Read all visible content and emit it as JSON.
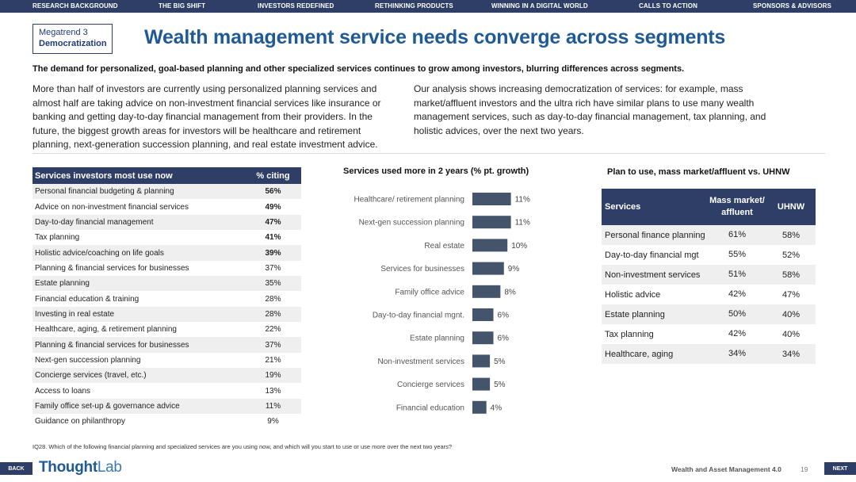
{
  "nav": [
    "RESEARCH BACKGROUND",
    "THE BIG SHIFT",
    "INVESTORS REDEFINED",
    "RETHINKING PRODUCTS",
    "WINNING IN A DIGITAL WORLD",
    "CALLS TO ACTION",
    "SPONSORS & ADVISORS"
  ],
  "badge": {
    "line1": "Megatrend 3",
    "line2": "Democratization"
  },
  "title": "Wealth management service needs converge across segments",
  "subtitle": "The demand for personalized, goal-based planning and other specialized services continues to grow among investors, blurring differences across segments.",
  "para_left": "More than half of investors are currently using personalized planning services and almost half are taking advice on non-investment financial services like insurance or banking and getting day-to-day financial management from their providers. In the future, the biggest growth areas for investors will be healthcare and retirement planning, next-generation succession planning, and real estate investment advice.",
  "para_right": "Our analysis shows increasing democratization of services: for example, mass market/affluent investors and the ultra rich have similar plans to use many wealth management services, such as day-to-day financial management, tax planning, and holistic advices, over the next two years.",
  "left_table": {
    "headers": [
      "Services investors most use now",
      "% citing"
    ],
    "rows": [
      [
        "Personal financial budgeting & planning",
        "56%"
      ],
      [
        "Advice on non-investment financial services",
        "49%"
      ],
      [
        "Day-to-day financial management",
        "47%"
      ],
      [
        "Tax planning",
        "41%"
      ],
      [
        "Holistic advice/coaching on life goals",
        "39%"
      ],
      [
        "Planning & financial services for businesses",
        "37%"
      ],
      [
        "Estate planning",
        "35%"
      ],
      [
        "Financial education & training",
        "28%"
      ],
      [
        "Investing in real estate",
        "28%"
      ],
      [
        "Healthcare, aging, & retirement planning",
        "22%"
      ],
      [
        "Planning & financial services for businesses",
        "37%"
      ],
      [
        "Next-gen succession planning",
        "21%"
      ],
      [
        "Concierge services (travel, etc.)",
        "19%"
      ],
      [
        "Access to loans",
        "13%"
      ],
      [
        "Family office set-up & governance advice",
        "11%"
      ],
      [
        "Guidance on philanthropy",
        "9%"
      ]
    ]
  },
  "chart_title": "Services used more in 2 years (% pt. growth)",
  "chart_data": {
    "type": "bar",
    "orientation": "horizontal",
    "title": "Services used more in 2 years (% pt. growth)",
    "categories": [
      "Healthcare/ retirement planning",
      "Next-gen succession planning",
      "Real estate",
      "Services for businesses",
      "Family office advice",
      "Day-to-day financial mgnt.",
      "Estate planning",
      "Non-investment services",
      "Concierge services",
      "Financial education"
    ],
    "values": [
      11,
      11,
      10,
      9,
      8,
      6,
      6,
      5,
      5,
      4
    ],
    "value_labels": [
      "11%",
      "11%",
      "10%",
      "9%",
      "8%",
      "6%",
      "6%",
      "5%",
      "5%",
      "4%"
    ],
    "xlim": [
      0,
      12
    ],
    "bar_color": "#44546a"
  },
  "right_table": {
    "title": "Plan to use, mass market/affluent vs. UHNW",
    "headers": [
      "Services",
      "Mass market/ affluent",
      "UHNW"
    ],
    "rows": [
      [
        "Personal finance planning",
        "61%",
        "58%"
      ],
      [
        "Day-to-day financial mgt",
        "55%",
        "52%"
      ],
      [
        "Non-investment services",
        "51%",
        "58%"
      ],
      [
        "Holistic advice",
        "42%",
        "47%"
      ],
      [
        "Estate planning",
        "50%",
        "40%"
      ],
      [
        "Tax planning",
        "42%",
        "40%"
      ],
      [
        "Healthcare, aging",
        "34%",
        "34%"
      ]
    ]
  },
  "footnote": "IQ28. Which of the following financial planning and specialized services are you using now, and which will you start to use or use more over the next two years?",
  "footer": {
    "back": "BACK",
    "next": "NEXT",
    "logo_a": "Thought",
    "logo_b": "Lab",
    "report": "Wealth and Asset Management 4.0",
    "page": "19"
  },
  "colors": {
    "navy": "#2e3e66",
    "title_blue": "#1f5a94",
    "bar": "#44546a"
  }
}
